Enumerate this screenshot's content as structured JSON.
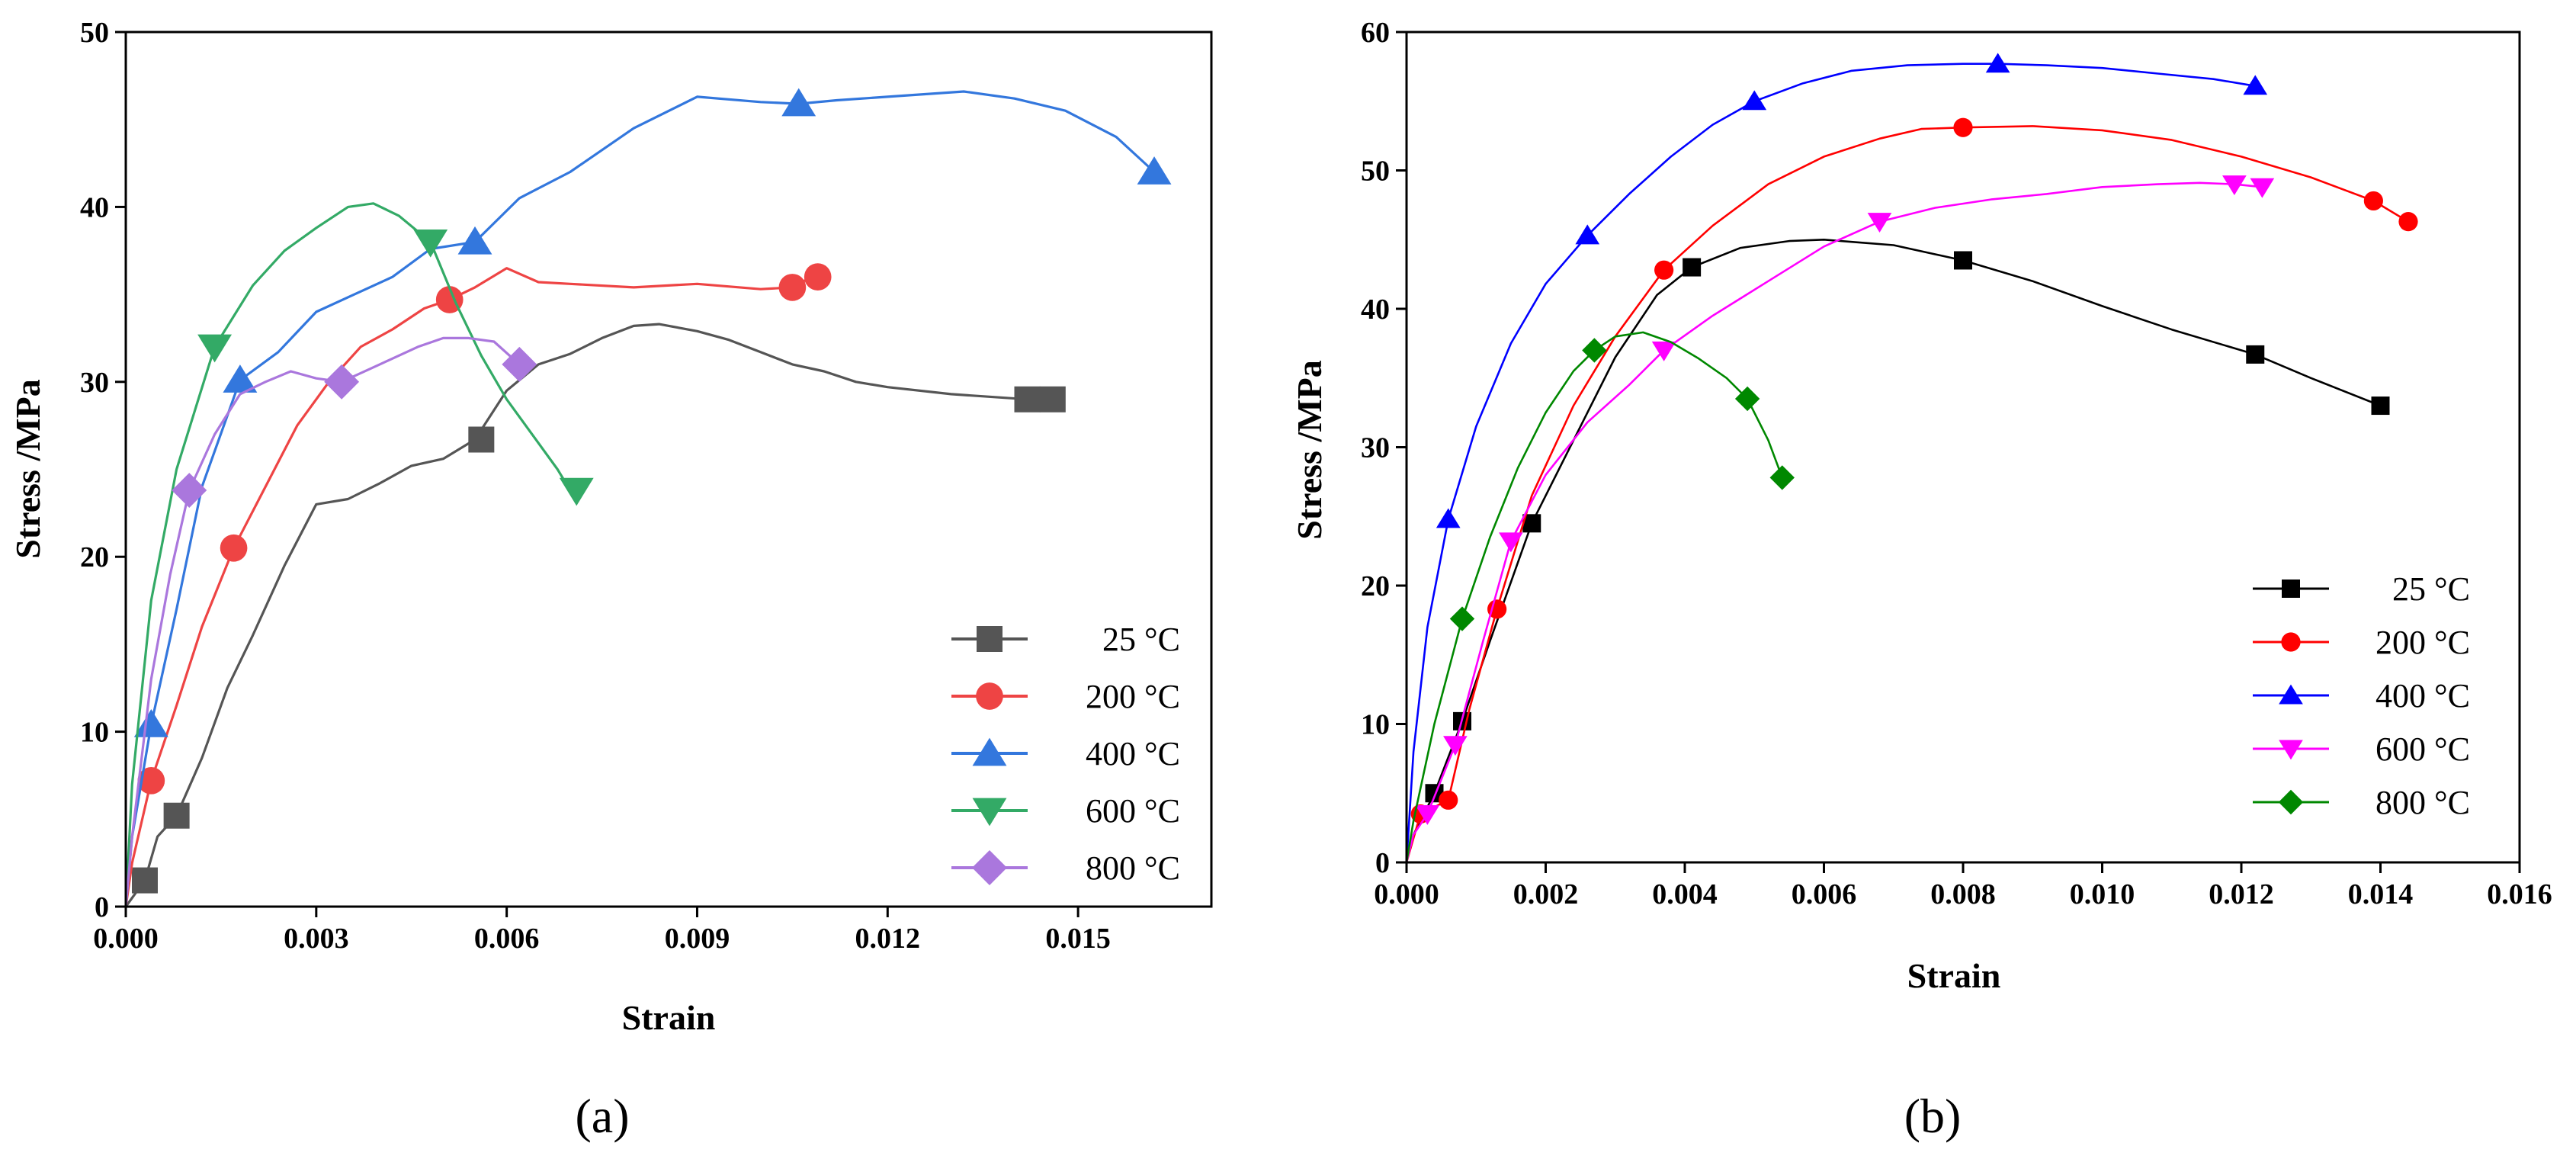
{
  "chart_data": [
    {
      "type": "line",
      "panel_label": "(a)",
      "xlabel": "Strain",
      "ylabel": "Stress /MPa",
      "xlim": [
        0,
        0.0171
      ],
      "ylim": [
        0,
        50
      ],
      "xticks": [
        "0.000",
        "0.003",
        "0.006",
        "0.009",
        "0.012",
        "0.015"
      ],
      "xtick_values": [
        0,
        0.003,
        0.006,
        0.009,
        0.012,
        0.015
      ],
      "yticks": [
        "0",
        "10",
        "20",
        "30",
        "40",
        "50"
      ],
      "ytick_values": [
        0,
        10,
        20,
        30,
        40,
        50
      ],
      "legend_position": "bottom-right",
      "series": [
        {
          "name": "25 °C",
          "color": "#555555",
          "marker": "square",
          "x": [
            0,
            0.0003,
            0.0005,
            0.0008,
            0.0012,
            0.0016,
            0.002,
            0.0025,
            0.003,
            0.0035,
            0.004,
            0.0045,
            0.005,
            0.0055,
            0.006,
            0.0065,
            0.007,
            0.0075,
            0.008,
            0.0084,
            0.009,
            0.0095,
            0.01,
            0.0105,
            0.011,
            0.0115,
            0.012,
            0.013,
            0.0142,
            0.0145
          ],
          "y": [
            0,
            1.5,
            4.0,
            5.2,
            8.5,
            12.5,
            15.5,
            19.5,
            23.0,
            23.3,
            24.2,
            25.2,
            25.6,
            26.7,
            29.5,
            31.0,
            31.6,
            32.5,
            33.2,
            33.3,
            32.9,
            32.4,
            31.7,
            31.0,
            30.6,
            30.0,
            29.7,
            29.3,
            29.0,
            29.0
          ],
          "marker_x": [
            0.0003,
            0.0008,
            0.0056,
            0.0142,
            0.0146
          ],
          "marker_y": [
            1.5,
            5.2,
            26.7,
            29.0,
            29.0
          ]
        },
        {
          "name": "200 °C",
          "color": "#ee4444",
          "marker": "circle",
          "x": [
            0,
            0.0001,
            0.0004,
            0.0008,
            0.0012,
            0.0017,
            0.0022,
            0.0027,
            0.0032,
            0.0037,
            0.0042,
            0.0047,
            0.0051,
            0.0055,
            0.006,
            0.0065,
            0.007,
            0.008,
            0.009,
            0.01,
            0.0105,
            0.0108
          ],
          "y": [
            0,
            2.5,
            7.2,
            11.5,
            16.0,
            20.5,
            24.0,
            27.5,
            30.0,
            32.0,
            33.0,
            34.2,
            34.7,
            35.4,
            36.5,
            35.7,
            35.6,
            35.4,
            35.6,
            35.3,
            35.4,
            36.0
          ],
          "marker_x": [
            0.0004,
            0.0017,
            0.0051,
            0.0105,
            0.0109
          ],
          "marker_y": [
            7.2,
            20.5,
            34.7,
            35.4,
            36.0
          ]
        },
        {
          "name": "400 °C",
          "color": "#3377dd",
          "marker": "triangle-up",
          "x": [
            0,
            0.0001,
            0.0004,
            0.0008,
            0.0012,
            0.0018,
            0.0024,
            0.003,
            0.0036,
            0.0042,
            0.0048,
            0.0055,
            0.0062,
            0.007,
            0.008,
            0.009,
            0.01,
            0.0106,
            0.0112,
            0.012,
            0.0132,
            0.014,
            0.0148,
            0.0156,
            0.0162
          ],
          "y": [
            0,
            4.0,
            10.4,
            17.0,
            24.0,
            30.1,
            31.7,
            34.0,
            35.0,
            36.0,
            37.6,
            38.0,
            40.5,
            42.0,
            44.5,
            46.3,
            46.0,
            45.9,
            46.1,
            46.3,
            46.6,
            46.2,
            45.5,
            44.0,
            42.0
          ],
          "marker_x": [
            0.0004,
            0.0018,
            0.0055,
            0.0106,
            0.0162
          ],
          "marker_y": [
            10.4,
            30.1,
            38.0,
            45.9,
            42.0
          ]
        },
        {
          "name": "600 °C",
          "color": "#33aa66",
          "marker": "triangle-down",
          "x": [
            0,
            0.0001,
            0.0004,
            0.0008,
            0.0014,
            0.002,
            0.0025,
            0.003,
            0.0035,
            0.0039,
            0.0043,
            0.0048,
            0.0052,
            0.0056,
            0.006,
            0.0065,
            0.0068,
            0.007
          ],
          "y": [
            0,
            7.0,
            17.5,
            25.0,
            32.0,
            35.5,
            37.5,
            38.8,
            40.0,
            40.2,
            39.5,
            38.0,
            34.5,
            31.5,
            29.0,
            26.5,
            25.0,
            23.8
          ],
          "marker_x": [
            0.0014,
            0.0048,
            0.0071
          ],
          "marker_y": [
            32.0,
            38.0,
            23.8
          ]
        },
        {
          "name": "800 °C",
          "color": "#aa77dd",
          "marker": "diamond",
          "x": [
            0,
            0.0001,
            0.0004,
            0.0007,
            0.001,
            0.0014,
            0.0018,
            0.0022,
            0.0026,
            0.003,
            0.0034,
            0.004,
            0.0046,
            0.005,
            0.0054,
            0.0058,
            0.0062
          ],
          "y": [
            0,
            4.0,
            13.0,
            19.0,
            23.8,
            27.0,
            29.3,
            30.0,
            30.6,
            30.2,
            30.0,
            31.0,
            32.0,
            32.5,
            32.5,
            32.3,
            31.0
          ],
          "marker_x": [
            0.001,
            0.0034,
            0.0062
          ],
          "marker_y": [
            23.8,
            30.0,
            31.0
          ]
        }
      ]
    },
    {
      "type": "line",
      "panel_label": "(b)",
      "xlabel": "Strain",
      "ylabel": "Stress /MPa",
      "xlim": [
        0,
        0.016
      ],
      "ylim": [
        0,
        60
      ],
      "xticks": [
        "0.000",
        "0.002",
        "0.004",
        "0.006",
        "0.008",
        "0.010",
        "0.012",
        "0.014",
        "0.016"
      ],
      "xtick_values": [
        0,
        0.002,
        0.004,
        0.006,
        0.008,
        0.01,
        0.012,
        0.014,
        0.016
      ],
      "yticks": [
        "0",
        "10",
        "20",
        "30",
        "40",
        "50",
        "60"
      ],
      "ytick_values": [
        0,
        10,
        20,
        30,
        40,
        50,
        60
      ],
      "legend_position": "bottom-right",
      "series": [
        {
          "name": "25 °C",
          "color": "#000000",
          "marker": "square",
          "x": [
            0,
            0.0001,
            0.0004,
            0.0008,
            0.0012,
            0.0018,
            0.0024,
            0.003,
            0.0036,
            0.0041,
            0.0048,
            0.0055,
            0.006,
            0.0065,
            0.007,
            0.008,
            0.009,
            0.01,
            0.011,
            0.0122,
            0.013,
            0.014
          ],
          "y": [
            0,
            2.0,
            5.0,
            10.2,
            16.0,
            24.5,
            30.5,
            36.5,
            41.0,
            43.0,
            44.4,
            44.9,
            45.0,
            44.8,
            44.6,
            43.5,
            42.0,
            40.2,
            38.5,
            36.7,
            35.0,
            33.0
          ],
          "marker_x": [
            0.0004,
            0.0008,
            0.0018,
            0.0041,
            0.008,
            0.0122,
            0.014
          ],
          "marker_y": [
            5.0,
            10.2,
            24.5,
            43.0,
            43.5,
            36.7,
            33.0
          ]
        },
        {
          "name": "200 °C",
          "color": "#ff0000",
          "marker": "circle",
          "x": [
            0,
            0.0002,
            0.0006,
            0.0009,
            0.0013,
            0.0018,
            0.0024,
            0.003,
            0.0037,
            0.0044,
            0.0052,
            0.006,
            0.0068,
            0.0074,
            0.008,
            0.009,
            0.01,
            0.011,
            0.012,
            0.013,
            0.0139,
            0.0144
          ],
          "y": [
            0,
            3.5,
            4.5,
            11.0,
            18.3,
            26.5,
            33.0,
            38.0,
            42.8,
            46.0,
            49.0,
            51.0,
            52.3,
            53.0,
            53.1,
            53.2,
            52.9,
            52.2,
            51.0,
            49.5,
            47.8,
            46.3
          ],
          "marker_x": [
            0.0002,
            0.0006,
            0.0013,
            0.0037,
            0.008,
            0.0139,
            0.0144
          ],
          "marker_y": [
            3.5,
            4.5,
            18.3,
            42.8,
            53.1,
            47.8,
            46.3
          ]
        },
        {
          "name": "400 °C",
          "color": "#0000ff",
          "marker": "triangle-up",
          "x": [
            0,
            0.0001,
            0.0003,
            0.0006,
            0.001,
            0.0015,
            0.002,
            0.0026,
            0.0032,
            0.0038,
            0.0044,
            0.005,
            0.0057,
            0.0064,
            0.0072,
            0.008,
            0.0085,
            0.0092,
            0.01,
            0.0108,
            0.0116,
            0.0122
          ],
          "y": [
            0,
            8.0,
            17.0,
            24.8,
            31.5,
            37.5,
            41.8,
            45.3,
            48.3,
            51.0,
            53.3,
            55.0,
            56.3,
            57.2,
            57.6,
            57.7,
            57.7,
            57.6,
            57.4,
            57.0,
            56.6,
            56.1
          ],
          "marker_x": [
            0.0006,
            0.0026,
            0.005,
            0.0085,
            0.0122
          ],
          "marker_y": [
            24.8,
            45.3,
            55.0,
            57.7,
            56.1
          ]
        },
        {
          "name": "600 °C",
          "color": "#ff00ff",
          "marker": "triangle-down",
          "x": [
            0,
            0.0001,
            0.0003,
            0.0007,
            0.0011,
            0.0015,
            0.002,
            0.0026,
            0.0032,
            0.0037,
            0.0044,
            0.0052,
            0.006,
            0.0068,
            0.0076,
            0.0084,
            0.0092,
            0.01,
            0.0108,
            0.0114,
            0.0119,
            0.0123
          ],
          "y": [
            0,
            2.0,
            3.5,
            8.5,
            16.0,
            23.2,
            28.0,
            31.8,
            34.5,
            37.0,
            39.5,
            42.0,
            44.5,
            46.3,
            47.3,
            47.9,
            48.3,
            48.8,
            49.0,
            49.1,
            49.0,
            48.8
          ],
          "marker_x": [
            0.0003,
            0.0007,
            0.0015,
            0.0037,
            0.0068,
            0.0119,
            0.0123
          ],
          "marker_y": [
            3.5,
            8.5,
            23.2,
            37.0,
            46.3,
            49.0,
            48.8
          ]
        },
        {
          "name": "800 °C",
          "color": "#008800",
          "marker": "diamond",
          "x": [
            0,
            0.0001,
            0.0004,
            0.0008,
            0.0012,
            0.0016,
            0.002,
            0.0024,
            0.0027,
            0.003,
            0.0034,
            0.0038,
            0.0042,
            0.0046,
            0.0049,
            0.0052,
            0.0054
          ],
          "y": [
            0,
            3.0,
            10.0,
            17.6,
            23.5,
            28.5,
            32.5,
            35.5,
            37.0,
            38.0,
            38.3,
            37.6,
            36.4,
            35.0,
            33.5,
            30.5,
            27.8
          ],
          "marker_x": [
            0.0008,
            0.0027,
            0.0049,
            0.0054
          ],
          "marker_y": [
            17.6,
            37.0,
            33.5,
            27.8
          ]
        }
      ]
    }
  ]
}
